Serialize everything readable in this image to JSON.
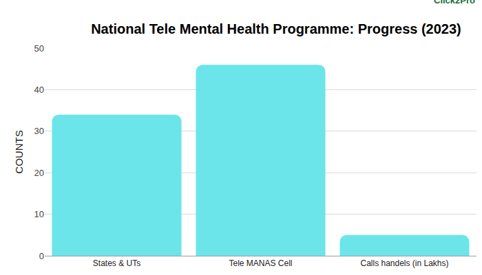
{
  "chart_data": {
    "type": "bar",
    "title": "National Tele Mental Health Programme: Progress (2023)",
    "y_label": "COUNTS",
    "categories": [
      "States & UTs",
      "Tele MANAS Cell",
      "Calls handels (in Lakhs)"
    ],
    "values": [
      34,
      46,
      5
    ],
    "color": "#6ce5ea",
    "ylim": [
      0,
      50
    ],
    "yticks": [
      0,
      10,
      20,
      30,
      40,
      50
    ],
    "grid": true,
    "annotations": [
      "Click2Pro"
    ]
  }
}
